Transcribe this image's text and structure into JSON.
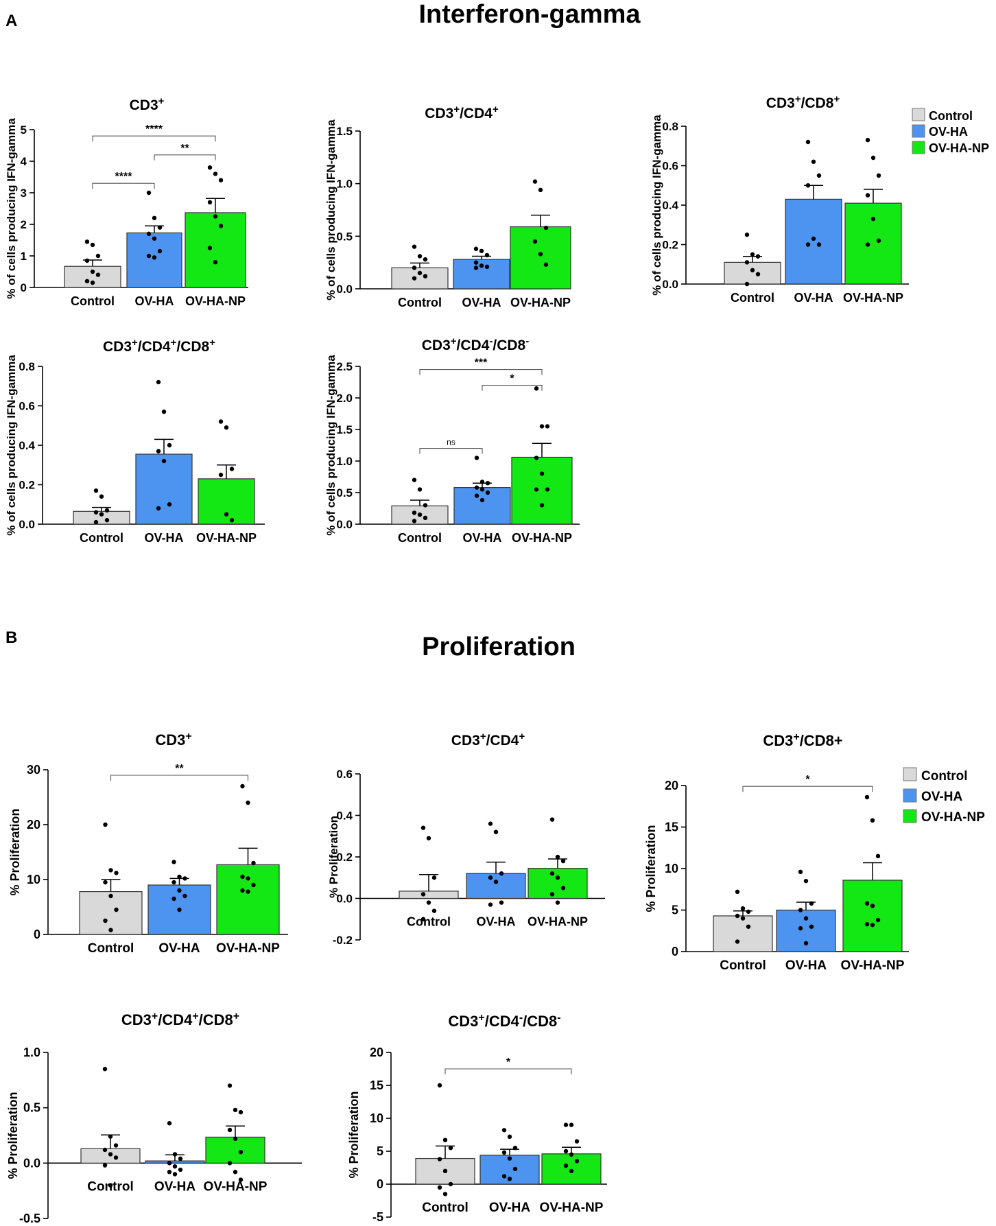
{
  "sections": [
    {
      "letter": "A",
      "title": "Interferon-gamma"
    },
    {
      "letter": "B",
      "title": "Proliferation"
    }
  ],
  "legend_items": [
    {
      "label": "Control",
      "color": "#d9d9d9"
    },
    {
      "label": "OV-HA",
      "color": "#4d94f0"
    },
    {
      "label": "OV-HA-NP",
      "color": "#14e814"
    }
  ],
  "chart_data": [
    {
      "id": "ifn-cd3",
      "section": "A",
      "type": "bar",
      "title": "CD3",
      "title_parts": [
        [
          "CD3",
          ""
        ],
        [
          "+",
          "sup"
        ]
      ],
      "ylabel": "% of cells producing IFN-gamma",
      "ylim": [
        0,
        5
      ],
      "yticks": [
        "0",
        "1",
        "2",
        "3",
        "4",
        "5"
      ],
      "categories": [
        "Control",
        "OV-HA",
        "OV-HA-NP"
      ],
      "values": [
        0.67,
        1.73,
        2.37
      ],
      "sem": [
        0.2,
        0.22,
        0.45
      ],
      "points": [
        [
          1.45,
          1.35,
          1.0,
          0.85,
          0.5,
          0.4,
          0.2,
          0.15
        ],
        [
          3.0,
          2.2,
          1.9,
          1.7,
          1.55,
          1.15,
          1.0,
          0.95
        ],
        [
          3.8,
          3.6,
          3.4,
          2.7,
          2.25,
          1.95,
          1.25,
          0.8
        ]
      ],
      "significance": [
        {
          "from": 0,
          "to": 1,
          "label": "****",
          "y": 3.3
        },
        {
          "from": 1,
          "to": 2,
          "label": "**",
          "y": 4.2
        },
        {
          "from": 0,
          "to": 2,
          "label": "****",
          "y": 4.8
        }
      ]
    },
    {
      "id": "ifn-cd3-cd4",
      "section": "A",
      "type": "bar",
      "title": "CD3/CD4",
      "title_parts": [
        [
          "CD3",
          ""
        ],
        [
          "+",
          "sup"
        ],
        [
          "/CD4",
          ""
        ],
        [
          "+",
          "sup"
        ]
      ],
      "ylabel": "% of cells producing IFN-gamma",
      "ylim": [
        0,
        1.5
      ],
      "yticks": [
        "0.0",
        "0.5",
        "1.0",
        "1.5"
      ],
      "categories": [
        "Control",
        "OV-HA",
        "OV-HA-NP"
      ],
      "values": [
        0.2,
        0.28,
        0.59
      ],
      "sem": [
        0.045,
        0.03,
        0.11
      ],
      "points": [
        [
          0.4,
          0.31,
          0.28,
          0.2,
          0.15,
          0.12,
          0.1
        ],
        [
          0.38,
          0.36,
          0.32,
          0.25,
          0.22,
          0.21,
          0.2
        ],
        [
          1.02,
          0.94,
          0.58,
          0.45,
          0.33,
          0.23
        ]
      ],
      "significance": []
    },
    {
      "id": "ifn-cd3-cd8",
      "section": "A",
      "type": "bar",
      "title": "CD3/CD8",
      "title_parts": [
        [
          "CD3",
          ""
        ],
        [
          "+",
          "sup"
        ],
        [
          "/CD8",
          ""
        ],
        [
          "+",
          "sup"
        ]
      ],
      "ylabel": "% of cells producing IFN-gamma",
      "ylim": [
        0,
        0.8
      ],
      "yticks": [
        "0.0",
        "0.2",
        "0.4",
        "0.6",
        "0.8"
      ],
      "categories": [
        "Control",
        "OV-HA",
        "OV-HA-NP"
      ],
      "values": [
        0.11,
        0.43,
        0.41
      ],
      "sem": [
        0.03,
        0.07,
        0.07
      ],
      "points": [
        [
          0.25,
          0.15,
          0.14,
          0.11,
          0.07,
          0.05,
          0.0
        ],
        [
          0.72,
          0.62,
          0.55,
          0.5,
          0.23,
          0.2,
          0.2
        ],
        [
          0.73,
          0.64,
          0.55,
          0.45,
          0.33,
          0.22,
          0.2
        ]
      ],
      "significance": []
    },
    {
      "id": "ifn-cd3-dp",
      "section": "A",
      "type": "bar",
      "title": "CD3/CD4/CD8",
      "title_parts": [
        [
          "CD3",
          ""
        ],
        [
          "+",
          "sup"
        ],
        [
          "/CD4",
          ""
        ],
        [
          "+",
          "sup"
        ],
        [
          "/CD8",
          ""
        ],
        [
          "+",
          "sup"
        ]
      ],
      "ylabel": "% of cells producing IFN-gamma",
      "ylim": [
        0,
        0.8
      ],
      "yticks": [
        "0.0",
        "0.2",
        "0.4",
        "0.6",
        "0.8"
      ],
      "categories": [
        "Control",
        "OV-HA",
        "OV-HA-NP"
      ],
      "values": [
        0.065,
        0.355,
        0.23
      ],
      "sem": [
        0.02,
        0.075,
        0.07
      ],
      "points": [
        [
          0.17,
          0.14,
          0.07,
          0.06,
          0.05,
          0.02,
          0.01
        ],
        [
          0.72,
          0.57,
          0.4,
          0.37,
          0.32,
          0.1,
          0.08
        ],
        [
          0.52,
          0.49,
          0.28,
          0.25,
          0.05,
          0.02
        ]
      ],
      "significance": []
    },
    {
      "id": "ifn-cd3-dn",
      "section": "A",
      "type": "bar",
      "title": "CD3/CD4/CD8",
      "title_parts": [
        [
          "CD3",
          ""
        ],
        [
          "+",
          "sup"
        ],
        [
          "/CD4",
          ""
        ],
        [
          "-",
          "sup"
        ],
        [
          "/CD8",
          ""
        ],
        [
          "-",
          "sup"
        ]
      ],
      "ylabel": "% of cells producing IFN-gamma",
      "ylim": [
        0,
        2.5
      ],
      "yticks": [
        "0.0",
        "0.5",
        "1.0",
        "1.5",
        "2.0",
        "2.5"
      ],
      "categories": [
        "Control",
        "OV-HA",
        "OV-HA-NP"
      ],
      "values": [
        0.29,
        0.58,
        1.06
      ],
      "sem": [
        0.09,
        0.07,
        0.22
      ],
      "points": [
        [
          0.7,
          0.55,
          0.3,
          0.18,
          0.15,
          0.1,
          0.05
        ],
        [
          1.05,
          0.67,
          0.65,
          0.58,
          0.55,
          0.5,
          0.45,
          0.38
        ],
        [
          2.15,
          1.55,
          1.55,
          1.05,
          0.8,
          0.55,
          0.55,
          0.3
        ]
      ],
      "significance": [
        {
          "from": 0,
          "to": 1,
          "label": "ns",
          "y": 1.2
        },
        {
          "from": 1,
          "to": 2,
          "label": "*",
          "y": 2.2
        },
        {
          "from": 0,
          "to": 2,
          "label": "***",
          "y": 2.45
        }
      ]
    },
    {
      "id": "prolif-cd3",
      "section": "B",
      "type": "bar",
      "title": "CD3",
      "title_parts": [
        [
          "CD3",
          ""
        ],
        [
          "+",
          "sup"
        ]
      ],
      "ylabel": "% Proliferation",
      "ylim": [
        0,
        30
      ],
      "yticks": [
        "0",
        "10",
        "20",
        "30"
      ],
      "categories": [
        "Control",
        "OV-HA",
        "OV-HA-NP"
      ],
      "values": [
        7.8,
        9.0,
        12.7
      ],
      "sem": [
        2.2,
        1.2,
        3.0
      ],
      "points": [
        [
          20.0,
          11.7,
          11.2,
          9.5,
          7.0,
          4.5,
          2.5,
          0.8
        ],
        [
          13.2,
          10.5,
          10.2,
          9.5,
          8.0,
          7.0,
          6.5,
          4.5
        ],
        [
          27.0,
          24.0,
          13.0,
          10.5,
          10.2,
          9.0,
          8.0,
          7.8
        ]
      ],
      "significance": [
        {
          "from": 0,
          "to": 2,
          "label": "**",
          "y": 29.0
        }
      ]
    },
    {
      "id": "prolif-cd3-cd4",
      "section": "B",
      "type": "bar",
      "title": "CD3/CD4",
      "title_parts": [
        [
          "CD3",
          ""
        ],
        [
          "+",
          "sup"
        ],
        [
          "/CD4",
          ""
        ],
        [
          "+",
          "sup"
        ]
      ],
      "ylabel": "% Proliferation",
      "ylim": [
        -0.2,
        0.6
      ],
      "yticks": [
        "-0.2",
        "0.0",
        "0.2",
        "0.4",
        "0.6"
      ],
      "categories": [
        "Control",
        "OV-HA",
        "OV-HA-NP"
      ],
      "values": [
        0.035,
        0.12,
        0.145
      ],
      "sem": [
        0.08,
        0.055,
        0.045
      ],
      "points": [
        [
          0.34,
          0.29,
          0.1,
          0.02,
          -0.02,
          -0.06,
          -0.1
        ],
        [
          0.36,
          0.32,
          0.12,
          0.1,
          0.08,
          -0.02,
          -0.03
        ],
        [
          0.38,
          0.2,
          0.18,
          0.12,
          0.1,
          0.05,
          0.02,
          -0.02
        ]
      ],
      "significance": []
    },
    {
      "id": "prolif-cd3-cd8",
      "section": "B",
      "type": "bar",
      "title": "CD3/CD8+",
      "title_parts": [
        [
          "CD3",
          ""
        ],
        [
          "+",
          "sup"
        ],
        [
          "/CD8+",
          ""
        ]
      ],
      "ylabel": "% Proliferation",
      "ylim": [
        0,
        20
      ],
      "yticks": [
        "0",
        "5",
        "10",
        "15",
        "20"
      ],
      "categories": [
        "Control",
        "OV-HA",
        "OV-HA-NP"
      ],
      "values": [
        4.3,
        5.0,
        8.6
      ],
      "sem": [
        0.6,
        0.95,
        2.1
      ],
      "points": [
        [
          7.2,
          5.2,
          4.8,
          4.3,
          4.0,
          3.0,
          1.2
        ],
        [
          9.6,
          8.5,
          5.8,
          5.0,
          4.0,
          3.0,
          2.8,
          1.0
        ],
        [
          18.6,
          15.8,
          11.5,
          5.8,
          5.5,
          3.8,
          3.3,
          3.2
        ]
      ],
      "significance": [
        {
          "from": 0,
          "to": 2,
          "label": "*",
          "y": 19.9
        }
      ]
    },
    {
      "id": "prolif-cd3-dp",
      "section": "B",
      "type": "bar",
      "title": "CD3/CD4/CD8",
      "title_parts": [
        [
          "CD3",
          ""
        ],
        [
          "+",
          "sup"
        ],
        [
          "/CD4",
          ""
        ],
        [
          "+",
          "sup"
        ],
        [
          "/CD8",
          ""
        ],
        [
          "+",
          "sup"
        ]
      ],
      "ylabel": "% Proliferation",
      "ylim": [
        -0.5,
        1.0
      ],
      "yticks": [
        "-0.5",
        "0.0",
        "0.5",
        "1.0"
      ],
      "categories": [
        "Control",
        "OV-HA",
        "OV-HA-NP"
      ],
      "values": [
        0.13,
        0.02,
        0.235
      ],
      "sem": [
        0.125,
        0.055,
        0.1
      ],
      "points": [
        [
          0.85,
          0.24,
          0.16,
          0.12,
          0.08,
          0.05,
          -0.02,
          -0.2
        ],
        [
          0.36,
          0.08,
          0.04,
          0.0,
          -0.03,
          -0.06,
          -0.08,
          -0.1
        ],
        [
          0.7,
          0.48,
          0.46,
          0.3,
          0.22,
          0.1,
          0.0,
          -0.08,
          -0.15
        ]
      ],
      "significance": []
    },
    {
      "id": "prolif-cd3-dn",
      "section": "B",
      "type": "bar",
      "title": "CD3/CD4/CD8",
      "title_parts": [
        [
          "CD3",
          ""
        ],
        [
          "+",
          "sup"
        ],
        [
          "/CD4",
          ""
        ],
        [
          "-",
          "sup"
        ],
        [
          "/CD8",
          ""
        ],
        [
          "-",
          "sup"
        ]
      ],
      "ylabel": "% Proliferation",
      "ylim": [
        -5,
        20
      ],
      "yticks": [
        "-5",
        "0",
        "5",
        "10",
        "15",
        "20"
      ],
      "categories": [
        "Control",
        "OV-HA",
        "OV-HA-NP"
      ],
      "values": [
        3.9,
        4.4,
        4.6
      ],
      "sem": [
        1.9,
        0.9,
        1.0
      ],
      "points": [
        [
          15.0,
          6.7,
          5.5,
          3.8,
          2.0,
          0.0,
          -0.5,
          -1.5
        ],
        [
          8.2,
          7.2,
          5.5,
          4.8,
          3.9,
          2.3,
          1.2,
          0.8
        ],
        [
          9.0,
          9.0,
          6.5,
          5.0,
          4.5,
          3.5,
          2.8,
          2.0
        ]
      ],
      "significance": [
        {
          "from": 0,
          "to": 2,
          "label": "*",
          "y": 17.5
        }
      ]
    }
  ]
}
